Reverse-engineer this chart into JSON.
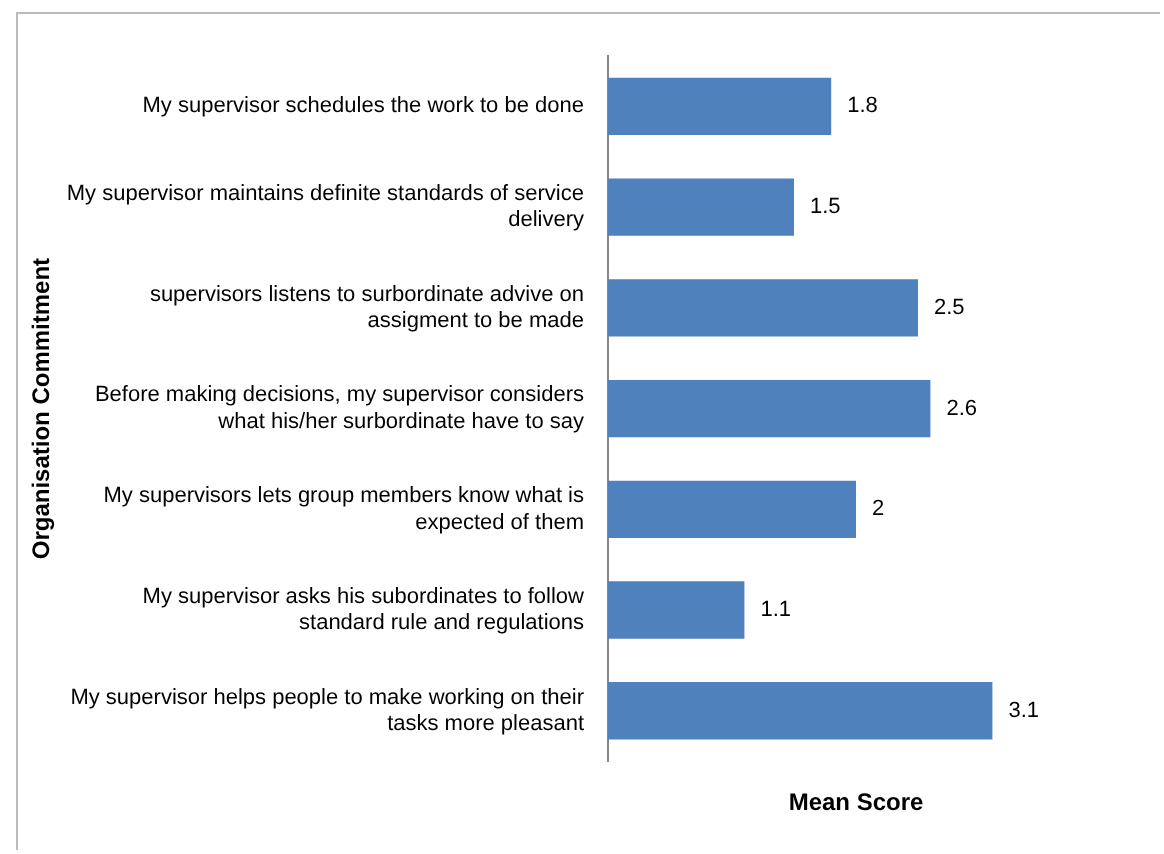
{
  "chart_data": {
    "type": "bar",
    "orientation": "horizontal",
    "xlabel": "Mean Score",
    "ylabel": "Organisation Commitment",
    "categories": [
      "My supervisor schedules the work to be done",
      "My supervisor maintains definite standards of service delivery",
      "supervisors listens to surbordinate advive on assigment to be made",
      "Before making decisions, my supervisor considers what his/her surbordinate have to say",
      "My supervisors lets group members know what is expected of them",
      "My supervisor asks his subordinates to follow standard rule and regulations",
      "My supervisor helps people to make working on their tasks more pleasant"
    ],
    "values": [
      1.8,
      1.5,
      2.5,
      2.6,
      2,
      1.1,
      3.1
    ],
    "color": "#4f81bd",
    "tick_labels": "y",
    "data_labels": true,
    "grid": false,
    "legend": false
  }
}
